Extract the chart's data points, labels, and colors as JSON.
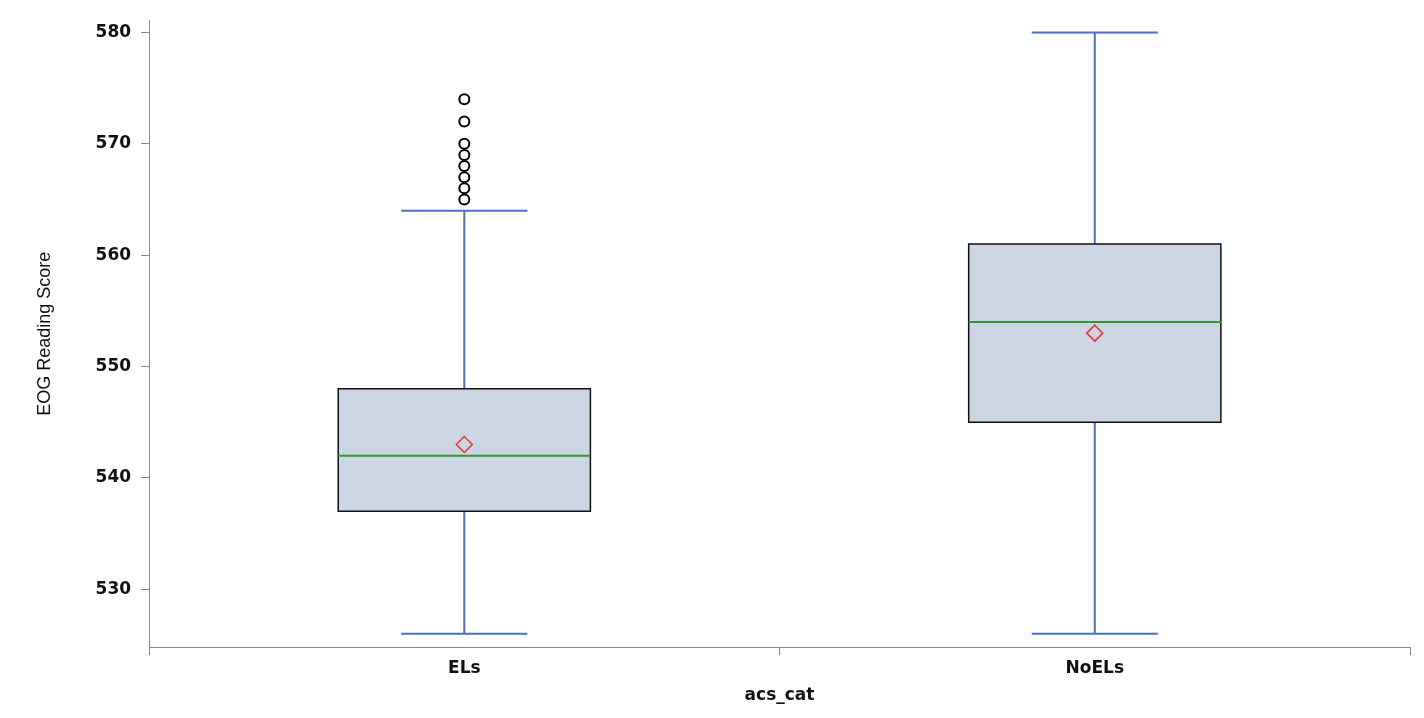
{
  "chart_data": {
    "type": "box",
    "xlabel": "acs_cat",
    "ylabel": "EOG Reading Score",
    "categories": [
      "ELs",
      "NoELs"
    ],
    "color": "#cbd5e3",
    "boxes": [
      {
        "low": 526,
        "q1": 537,
        "median": 542,
        "q3": 548,
        "high": 564,
        "mean": 543,
        "outliers": [
          565,
          566,
          567,
          568,
          569,
          570,
          572,
          574
        ]
      },
      {
        "low": 526,
        "q1": 545,
        "median": 554,
        "q3": 561,
        "high": 580,
        "mean": 553
      }
    ],
    "ylim": [
      524.8,
      581.1
    ],
    "yticks": [
      530,
      540,
      550,
      560,
      570,
      580
    ],
    "grid": false,
    "legend": false
  }
}
